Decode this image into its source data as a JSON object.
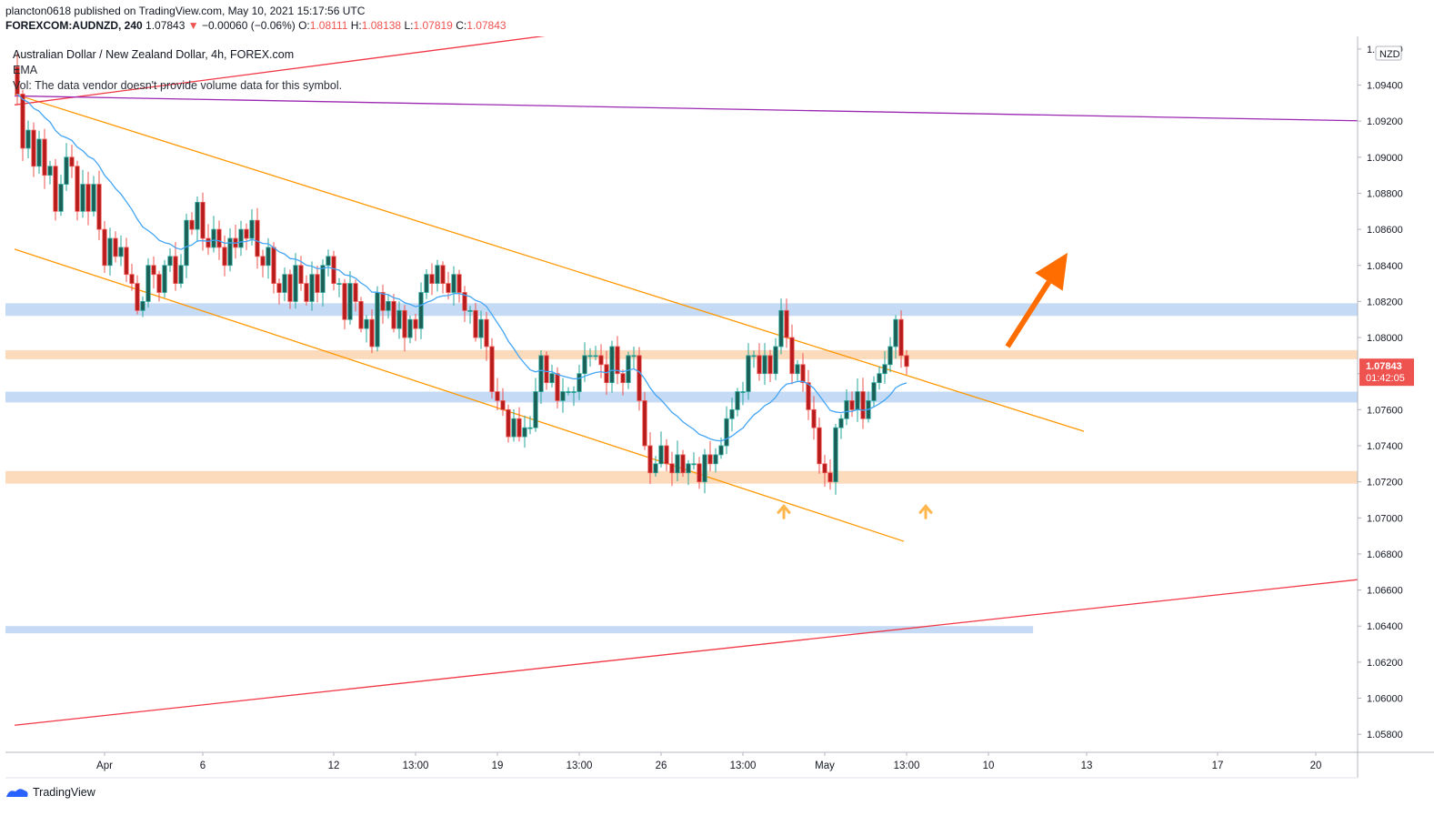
{
  "header": {
    "publisher_line": "plancton0618 published on TradingView.com, May 10, 2021 15:17:56 UTC",
    "symbol_code": "FOREXCOM:AUDNZD, 240",
    "last_price": "1.07843",
    "change": "−0.00060 (−0.06%)",
    "o_label": "O:",
    "o_value": "1.08111",
    "h_label": "H:",
    "h_value": "1.08138",
    "l_label": "L:",
    "l_value": "1.07819",
    "c_label": "C:",
    "c_value": "1.07843"
  },
  "legend": {
    "title": "Australian Dollar / New Zealand Dollar, 4h, FOREX.com",
    "ema_label": "EMA",
    "vol_note": "Vol: The data vendor doesn't provide volume data for this symbol."
  },
  "footer": {
    "brand": "TradingView"
  },
  "colors": {
    "up": "#26a69a",
    "down": "#ef5350",
    "candle_body_up": "#1b5e56",
    "candle_body_down": "#b71c1c",
    "ema": "#42a5f5",
    "channel": "#ff9800",
    "trend_red": "#f23645",
    "purple": "#9c27b0",
    "zone_blue": "#bbd3f2",
    "zone_orange": "#fbd4b0",
    "arrow": "#ff6d00",
    "price_label": "#ef5350"
  },
  "chart_data": {
    "type": "candlestick",
    "currency": "NZD",
    "ylim": [
      1.057,
      1.0967
    ],
    "y_ticks": [
      "1.09600",
      "1.09400",
      "1.09200",
      "1.09000",
      "1.08800",
      "1.08600",
      "1.08400",
      "1.08200",
      "1.08000",
      "1.07800",
      "1.07600",
      "1.07400",
      "1.07200",
      "1.07000",
      "1.06800",
      "1.06600",
      "1.06400",
      "1.06200",
      "1.06000",
      "1.05800"
    ],
    "x_ticks": [
      {
        "label": "Apr",
        "t": 16.5
      },
      {
        "label": "6",
        "t": 34.5
      },
      {
        "label": "12",
        "t": 58.5
      },
      {
        "label": "13:00",
        "t": 73.5
      },
      {
        "label": "19",
        "t": 88.5
      },
      {
        "label": "13:00",
        "t": 103.5
      },
      {
        "label": "26",
        "t": 118.5
      },
      {
        "label": "13:00",
        "t": 133.5
      },
      {
        "label": "May",
        "t": 148.5
      },
      {
        "label": "13:00",
        "t": 163.5
      },
      {
        "label": "10",
        "t": 178.5
      },
      {
        "label": "13",
        "t": 196.5
      },
      {
        "label": "17",
        "t": 220.5
      },
      {
        "label": "20",
        "t": 238.5
      }
    ],
    "last_price_label": "1.07843",
    "countdown_label": "01:42:05",
    "path": [
      1.095,
      1.0935,
      1.0905,
      1.0915,
      1.0895,
      1.091,
      1.089,
      1.0895,
      1.087,
      1.0885,
      1.09,
      1.0895,
      1.087,
      1.0885,
      1.087,
      1.0885,
      1.086,
      1.084,
      1.0855,
      1.0845,
      1.085,
      1.0835,
      1.083,
      1.0815,
      1.082,
      1.084,
      1.0835,
      1.0825,
      1.084,
      1.0845,
      1.083,
      1.084,
      1.0865,
      1.086,
      1.0875,
      1.0855,
      1.085,
      1.086,
      1.085,
      1.084,
      1.0855,
      1.085,
      1.086,
      1.0855,
      1.0865,
      1.0845,
      1.084,
      1.085,
      1.083,
      1.0825,
      1.0835,
      1.082,
      1.084,
      1.083,
      1.082,
      1.0835,
      1.0825,
      1.084,
      1.0845,
      1.083,
      1.083,
      1.081,
      1.083,
      1.082,
      1.0805,
      1.081,
      1.0795,
      1.0825,
      1.0815,
      1.082,
      1.0805,
      1.0815,
      1.08,
      1.081,
      1.0805,
      1.0825,
      1.0835,
      1.083,
      1.084,
      1.083,
      1.0825,
      1.0835,
      1.0825,
      1.0815,
      1.0815,
      1.08,
      1.081,
      1.0795,
      1.077,
      1.0765,
      1.076,
      1.0745,
      1.0755,
      1.0745,
      1.075,
      1.075,
      1.077,
      1.079,
      1.0775,
      1.078,
      1.0765,
      1.077,
      1.077,
      1.077,
      1.078,
      1.079,
      1.079,
      1.079,
      1.0785,
      1.0775,
      1.0795,
      1.078,
      1.0775,
      1.079,
      1.079,
      1.0765,
      1.074,
      1.0725,
      1.073,
      1.074,
      1.073,
      1.0725,
      1.0735,
      1.0725,
      1.073,
      1.073,
      1.072,
      1.0735,
      1.073,
      1.0735,
      1.074,
      1.0755,
      1.076,
      1.077,
      1.077,
      1.079,
      1.079,
      1.078,
      1.079,
      1.078,
      1.0795,
      1.0815,
      1.08,
      1.078,
      1.0785,
      1.0775,
      1.076,
      1.075,
      1.073,
      1.0725,
      1.072,
      1.075,
      1.0755,
      1.0765,
      1.076,
      1.077,
      1.0755,
      1.0765,
      1.0775,
      1.078,
      1.0785,
      1.0795,
      1.081,
      1.079,
      1.0784
    ],
    "ema_period": 20,
    "zones": [
      {
        "color": "blue",
        "from": 1.0812,
        "to": 1.0819,
        "x_end": 1.0
      },
      {
        "color": "orange",
        "from": 1.0788,
        "to": 1.0793,
        "x_end": 1.0
      },
      {
        "color": "blue",
        "from": 1.0764,
        "to": 1.077,
        "x_end": 1.0
      },
      {
        "color": "orange",
        "from": 1.0719,
        "to": 1.0726,
        "x_end": 1.0
      },
      {
        "color": "blue",
        "from": 1.0636,
        "to": 1.064,
        "x_end": 0.76
      }
    ],
    "lines": [
      {
        "name": "upper channel",
        "color": "orange",
        "p1": {
          "t": 0,
          "y": 1.0935
        },
        "p2": {
          "t": 196,
          "y": 1.0748
        }
      },
      {
        "name": "lower channel",
        "color": "orange",
        "p1": {
          "t": 0,
          "y": 1.0849
        },
        "p2": {
          "t": 163,
          "y": 1.0687
        }
      },
      {
        "name": "upper red trend",
        "color": "red",
        "p1": {
          "t": 0,
          "y": 1.0929
        },
        "p2": {
          "t": 99,
          "y": 1.0968
        }
      },
      {
        "name": "purple resistance",
        "color": "purple",
        "p1": {
          "t": 0,
          "y": 1.0934
        },
        "p2": {
          "t": 250,
          "y": 1.092
        }
      },
      {
        "name": "lower red trend",
        "color": "red",
        "p1": {
          "t": 0,
          "y": 1.0585
        },
        "p2": {
          "t": 250,
          "y": 1.0667
        }
      }
    ],
    "markers": [
      {
        "type": "up-arrow",
        "t": 141,
        "y": 1.0704
      },
      {
        "type": "up-arrow",
        "t": 167,
        "y": 1.0704
      }
    ],
    "projection_arrow": {
      "from": {
        "t": 182,
        "y": 1.0795
      },
      "to": {
        "t": 193,
        "y": 1.0847
      }
    }
  }
}
